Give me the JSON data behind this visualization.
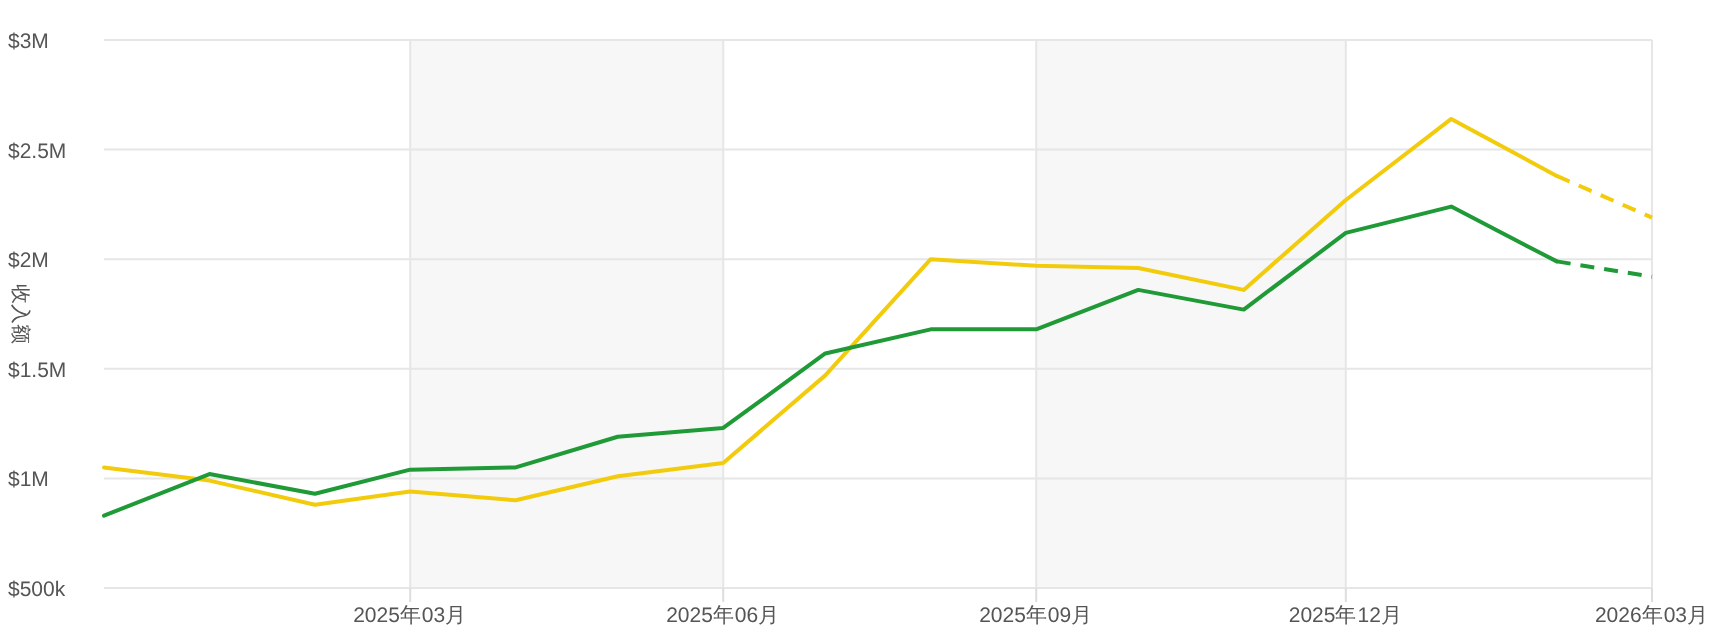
{
  "chart_data": {
    "type": "line",
    "ylabel": "收入额",
    "series": [
      {
        "color": "#f2cc0c",
        "line_style": "solid",
        "x": [
          "2024-12",
          "2025-01",
          "2025-02",
          "2025-03",
          "2025-04",
          "2025-05",
          "2025-06",
          "2025-07",
          "2025-08",
          "2025-09",
          "2025-10",
          "2025-11",
          "2025-12",
          "2026-01",
          "2026-02"
        ],
        "values": [
          1050000,
          990000,
          880000,
          940000,
          900000,
          1010000,
          1070000,
          1470000,
          2000000,
          1970000,
          1960000,
          1860000,
          2270000,
          2640000,
          2380000
        ]
      },
      {
        "color": "#f2cc0c",
        "line_style": "dashed",
        "x": [
          "2026-02",
          "2026-03"
        ],
        "values": [
          2380000,
          2190000
        ]
      },
      {
        "color": "#1f9a37",
        "line_style": "solid",
        "x": [
          "2024-12",
          "2025-01",
          "2025-02",
          "2025-03",
          "2025-04",
          "2025-05",
          "2025-06",
          "2025-07",
          "2025-08",
          "2025-09",
          "2025-10",
          "2025-11",
          "2025-12",
          "2026-01",
          "2026-02"
        ],
        "values": [
          830000,
          1020000,
          930000,
          1040000,
          1050000,
          1190000,
          1230000,
          1570000,
          1680000,
          1680000,
          1860000,
          1770000,
          2120000,
          2240000,
          1990000
        ]
      },
      {
        "color": "#1f9a37",
        "line_style": "dashed",
        "x": [
          "2026-02",
          "2026-03"
        ],
        "values": [
          1990000,
          1920000
        ]
      }
    ],
    "xlim": [
      "2024-12",
      "2026-03"
    ],
    "xticks": [
      {
        "value": "2025-03",
        "label": "2025年03月"
      },
      {
        "value": "2025-06",
        "label": "2025年06月"
      },
      {
        "value": "2025-09",
        "label": "2025年09月"
      },
      {
        "value": "2025-12",
        "label": "2025年12月"
      },
      {
        "value": "2026-03",
        "label": "2026年03月"
      }
    ],
    "ylim": [
      500000,
      3000000
    ],
    "yticks": [
      {
        "value": 500000,
        "label": "$500k"
      },
      {
        "value": 1000000,
        "label": "$1M"
      },
      {
        "value": 1500000,
        "label": "$1.5M"
      },
      {
        "value": 2000000,
        "label": "$2M"
      },
      {
        "value": 2500000,
        "label": "$2.5M"
      },
      {
        "value": 3000000,
        "label": "$3M"
      }
    ],
    "bands": [
      {
        "axis": "x",
        "from": "2025-03",
        "to": "2025-06",
        "color": "#f7f7f7"
      },
      {
        "axis": "x",
        "from": "2025-09",
        "to": "2025-12",
        "color": "#f7f7f7"
      }
    ],
    "grid": true
  }
}
